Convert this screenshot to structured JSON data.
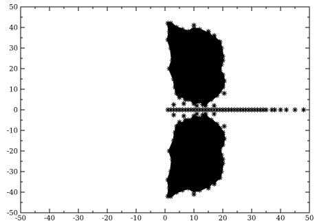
{
  "chart_data": {
    "type": "scatter",
    "title": "",
    "xlabel": "",
    "ylabel": "",
    "xlim": [
      -50,
      50
    ],
    "ylim": [
      -50,
      50
    ],
    "xticks": [
      -50,
      -40,
      -30,
      -20,
      -10,
      0,
      10,
      20,
      30,
      40,
      50
    ],
    "yticks": [
      -50,
      -40,
      -30,
      -20,
      -10,
      0,
      10,
      20,
      30,
      40,
      50
    ],
    "marker": "asterisk",
    "color": "#000000",
    "grid": false,
    "legend": false,
    "series": [
      {
        "points": {
          "real_axis": [
            [
              1,
              0
            ],
            [
              2,
              0
            ],
            [
              3,
              0
            ],
            [
              4,
              0
            ],
            [
              5,
              0
            ],
            [
              6,
              0
            ],
            [
              7,
              0
            ],
            [
              8,
              0
            ],
            [
              9,
              0
            ],
            [
              10,
              0
            ],
            [
              11,
              0
            ],
            [
              12,
              0
            ],
            [
              13,
              0
            ],
            [
              14,
              0
            ],
            [
              15,
              0
            ],
            [
              16,
              0
            ],
            [
              17,
              0
            ],
            [
              18,
              0
            ],
            [
              19,
              0
            ],
            [
              20,
              0
            ],
            [
              21,
              0
            ],
            [
              22,
              0
            ],
            [
              23,
              0
            ],
            [
              24,
              0
            ],
            [
              25,
              0
            ],
            [
              26,
              0
            ],
            [
              27,
              0
            ],
            [
              28,
              0
            ],
            [
              29,
              0
            ],
            [
              30,
              0
            ],
            [
              31,
              0
            ],
            [
              32,
              0
            ],
            [
              33,
              0
            ],
            [
              34,
              0
            ],
            [
              35,
              0
            ],
            [
              37,
              0
            ],
            [
              38,
              0
            ],
            [
              40,
              0
            ],
            [
              42,
              0
            ],
            [
              45,
              0
            ],
            [
              48,
              0
            ]
          ],
          "upper_cluster_envelope": [
            [
              1,
              42
            ],
            [
              1.5,
              38
            ],
            [
              1,
              34
            ],
            [
              2,
              30
            ],
            [
              2.5,
              24
            ],
            [
              1.5,
              20
            ],
            [
              3,
              15
            ],
            [
              3.5,
              11
            ],
            [
              4,
              8
            ],
            [
              5,
              6
            ],
            [
              6,
              7
            ],
            [
              7,
              5
            ],
            [
              9,
              5
            ],
            [
              10,
              3
            ],
            [
              12,
              4
            ],
            [
              14,
              3
            ],
            [
              16,
              5
            ],
            [
              18,
              7
            ],
            [
              19,
              9
            ],
            [
              20,
              11
            ],
            [
              20.5,
              14
            ],
            [
              20,
              17
            ],
            [
              19,
              19
            ],
            [
              19.5,
              22
            ],
            [
              20,
              26
            ],
            [
              19.5,
              30
            ],
            [
              19,
              33
            ],
            [
              17,
              35
            ],
            [
              15,
              37
            ],
            [
              12,
              39
            ],
            [
              10,
              39.5
            ],
            [
              8,
              38
            ],
            [
              6,
              39
            ],
            [
              4,
              40
            ],
            [
              2,
              42
            ]
          ],
          "upper_cluster_scatter": [
            [
              3,
              2.5
            ],
            [
              6.5,
              3
            ],
            [
              11,
              2
            ],
            [
              14,
              2
            ],
            [
              17,
              2
            ],
            [
              13,
              2.5
            ],
            [
              20,
              12
            ],
            [
              20.5,
              8
            ],
            [
              19,
              10
            ],
            [
              8,
              5
            ],
            [
              18,
              27
            ],
            [
              20,
              24
            ],
            [
              18.5,
              30
            ],
            [
              2,
              36
            ],
            [
              3,
              28
            ],
            [
              15,
              38
            ],
            [
              17,
              36
            ],
            [
              19,
              28
            ],
            [
              10,
              41
            ]
          ],
          "lower_cluster_envelope": [
            [
              1,
              -42
            ],
            [
              1.5,
              -38
            ],
            [
              1,
              -34
            ],
            [
              2,
              -30
            ],
            [
              2.5,
              -24
            ],
            [
              1.5,
              -20
            ],
            [
              3,
              -15
            ],
            [
              3.5,
              -11
            ],
            [
              4,
              -8
            ],
            [
              5,
              -6
            ],
            [
              6,
              -7
            ],
            [
              7,
              -5
            ],
            [
              9,
              -5
            ],
            [
              10,
              -3
            ],
            [
              12,
              -4
            ],
            [
              14,
              -3
            ],
            [
              16,
              -5
            ],
            [
              18,
              -7
            ],
            [
              19,
              -9
            ],
            [
              20,
              -11
            ],
            [
              20.5,
              -14
            ],
            [
              20,
              -17
            ],
            [
              19,
              -19
            ],
            [
              19.5,
              -22
            ],
            [
              20,
              -26
            ],
            [
              19.5,
              -30
            ],
            [
              19,
              -33
            ],
            [
              17,
              -35
            ],
            [
              15,
              -37
            ],
            [
              12,
              -39
            ],
            [
              10,
              -39.5
            ],
            [
              8,
              -38
            ],
            [
              6,
              -39
            ],
            [
              4,
              -40
            ],
            [
              2,
              -42
            ]
          ],
          "lower_cluster_scatter": [
            [
              3,
              -2.5
            ],
            [
              6.5,
              -3
            ],
            [
              11,
              -2
            ],
            [
              14,
              -2
            ],
            [
              17,
              -2
            ],
            [
              13,
              -2.5
            ],
            [
              20,
              -12
            ],
            [
              20.5,
              -8
            ],
            [
              19,
              -10
            ],
            [
              8,
              -5
            ],
            [
              18,
              -27
            ],
            [
              20,
              -24
            ],
            [
              18.5,
              -30
            ],
            [
              2,
              -36
            ],
            [
              3,
              -28
            ],
            [
              15,
              -38
            ],
            [
              17,
              -36
            ],
            [
              19,
              -28
            ],
            [
              10,
              -41
            ]
          ]
        }
      }
    ]
  }
}
